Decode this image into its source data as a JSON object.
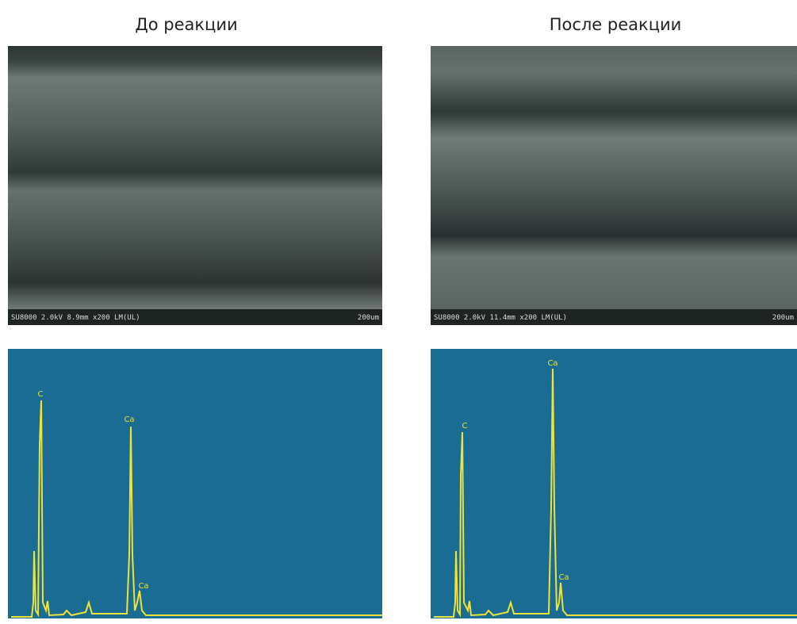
{
  "panels": [
    {
      "title": "До реакции",
      "sem": {
        "info": "SU8000 2.0kV 8.9mm x200 LM(UL)",
        "scale": "200um"
      },
      "spectrum": {
        "peaks": [
          "C",
          "Ca",
          "Ca"
        ]
      }
    },
    {
      "title": "После реакции",
      "sem": {
        "info": "SU8000 2.0kV 11.4mm x200 LM(UL)",
        "scale": "200um"
      },
      "spectrum": {
        "peaks": [
          "C",
          "Ca",
          "Ca"
        ]
      }
    }
  ]
}
